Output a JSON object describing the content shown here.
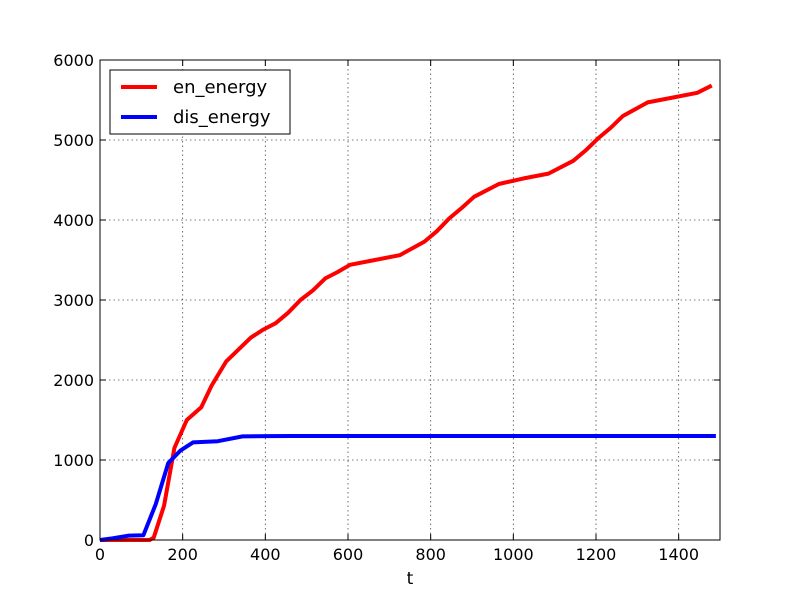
{
  "chart_data": {
    "type": "line",
    "title": "",
    "xlabel": "t",
    "ylabel": "",
    "xlim": [
      0,
      1500
    ],
    "ylim": [
      0,
      6000
    ],
    "xticks": [
      0,
      200,
      400,
      600,
      800,
      1000,
      1200,
      1400
    ],
    "yticks": [
      0,
      1000,
      2000,
      3000,
      4000,
      5000,
      6000
    ],
    "grid": true,
    "legend": "top-left",
    "series": [
      {
        "name": "en_energy",
        "color": "#ff0000",
        "x": [
          0,
          60,
          120,
          130,
          155,
          180,
          210,
          245,
          270,
          305,
          335,
          365,
          395,
          425,
          455,
          485,
          515,
          545,
          575,
          605,
          665,
          725,
          785,
          815,
          845,
          875,
          905,
          965,
          1025,
          1085,
          1145,
          1175,
          1205,
          1235,
          1265,
          1325,
          1385,
          1445,
          1480
        ],
        "y": [
          0,
          0,
          0,
          30,
          430,
          1150,
          1500,
          1660,
          1930,
          2230,
          2380,
          2530,
          2630,
          2710,
          2840,
          3000,
          3120,
          3270,
          3350,
          3440,
          3500,
          3560,
          3730,
          3860,
          4020,
          4150,
          4290,
          4450,
          4520,
          4580,
          4740,
          4870,
          5020,
          5150,
          5300,
          5470,
          5530,
          5590,
          5680
        ]
      },
      {
        "name": "dis_energy",
        "color": "#0000ff",
        "x": [
          0,
          30,
          70,
          105,
          135,
          165,
          195,
          225,
          285,
          345,
          405,
          465,
          525,
          600,
          700,
          800,
          900,
          1000,
          1100,
          1200,
          1300,
          1400,
          1490
        ],
        "y": [
          0,
          20,
          55,
          60,
          450,
          960,
          1120,
          1220,
          1235,
          1295,
          1298,
          1300,
          1300,
          1300,
          1300,
          1300,
          1300,
          1300,
          1300,
          1300,
          1300,
          1300,
          1300
        ]
      }
    ]
  }
}
